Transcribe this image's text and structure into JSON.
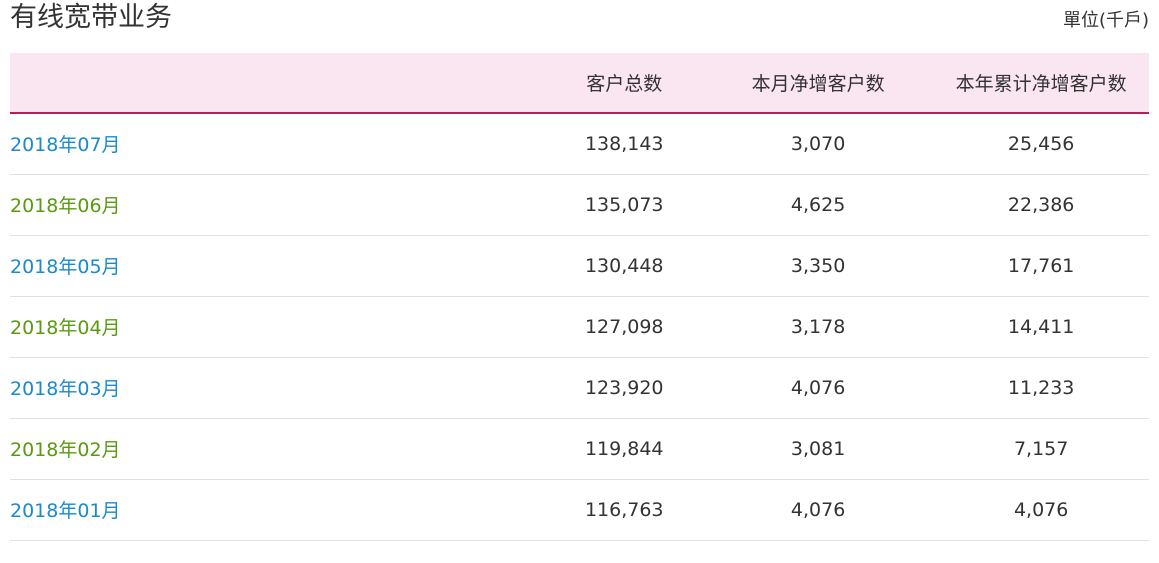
{
  "title": "有线宽带业务",
  "unit": "單位(千戶)",
  "colors": {
    "blue": "#1a8ad0",
    "green": "#5a9a10",
    "header_bg": "#fae6f0",
    "header_border": "#c2185b"
  },
  "table": {
    "headers": [
      "",
      "客户总数",
      "本月净增客户数",
      "本年累计净增客户数"
    ],
    "rows": [
      {
        "month": "2018年07月",
        "total": "138,143",
        "monthly": "3,070",
        "ytd": "25,456"
      },
      {
        "month": "2018年06月",
        "total": "135,073",
        "monthly": "4,625",
        "ytd": "22,386"
      },
      {
        "month": "2018年05月",
        "total": "130,448",
        "monthly": "3,350",
        "ytd": "17,761"
      },
      {
        "month": "2018年04月",
        "total": "127,098",
        "monthly": "3,178",
        "ytd": "14,411"
      },
      {
        "month": "2018年03月",
        "total": "123,920",
        "monthly": "4,076",
        "ytd": "11,233"
      },
      {
        "month": "2018年02月",
        "total": "119,844",
        "monthly": "3,081",
        "ytd": "7,157"
      },
      {
        "month": "2018年01月",
        "total": "116,763",
        "monthly": "4,076",
        "ytd": "4,076"
      }
    ]
  }
}
